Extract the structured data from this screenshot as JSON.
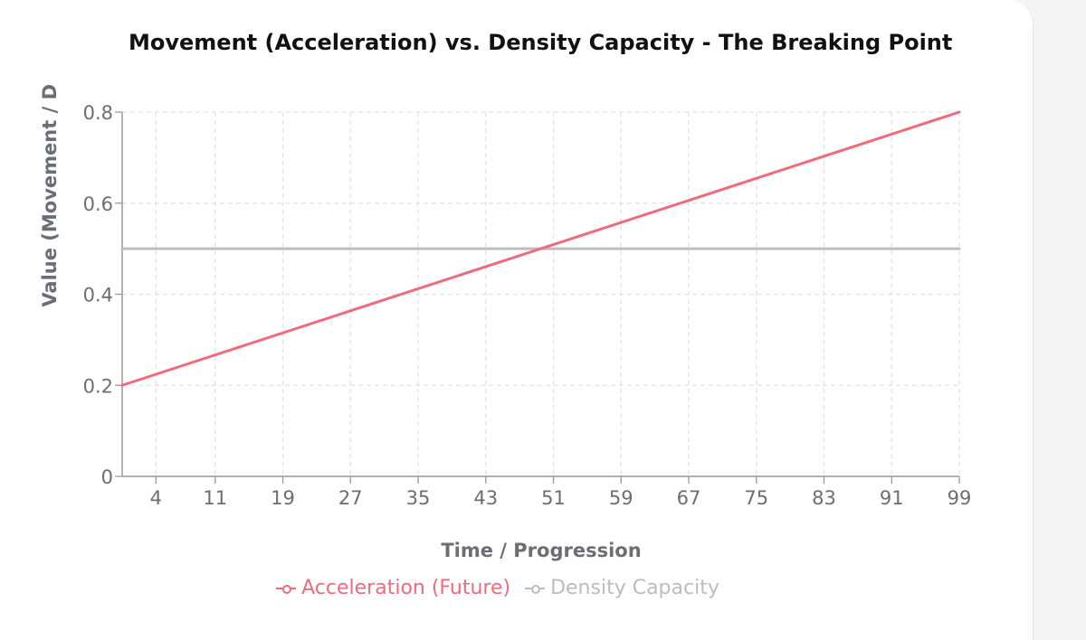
{
  "chart_data": {
    "type": "line",
    "title": "Movement (Acceleration) vs. Density Capacity - The Breaking Point",
    "xlabel": "Time / Progression",
    "ylabel": "Value (Movement / D",
    "x_tick_labels": [
      "4",
      "11",
      "19",
      "27",
      "35",
      "43",
      "51",
      "59",
      "67",
      "75",
      "83",
      "91",
      "99"
    ],
    "y_tick_labels": [
      "0",
      "0.2",
      "0.4",
      "0.6",
      "0.8"
    ],
    "xlim": [
      0,
      99
    ],
    "ylim": [
      0,
      0.8
    ],
    "grid": true,
    "legend_position": "bottom",
    "series": [
      {
        "name": "Acceleration (Future)",
        "color": "#f06b7b",
        "x": [
          0,
          99
        ],
        "y": [
          0.2,
          0.8
        ]
      },
      {
        "name": "Density Capacity",
        "color": "#bdbdbd",
        "x": [
          0,
          99
        ],
        "y": [
          0.5,
          0.5
        ]
      }
    ]
  }
}
